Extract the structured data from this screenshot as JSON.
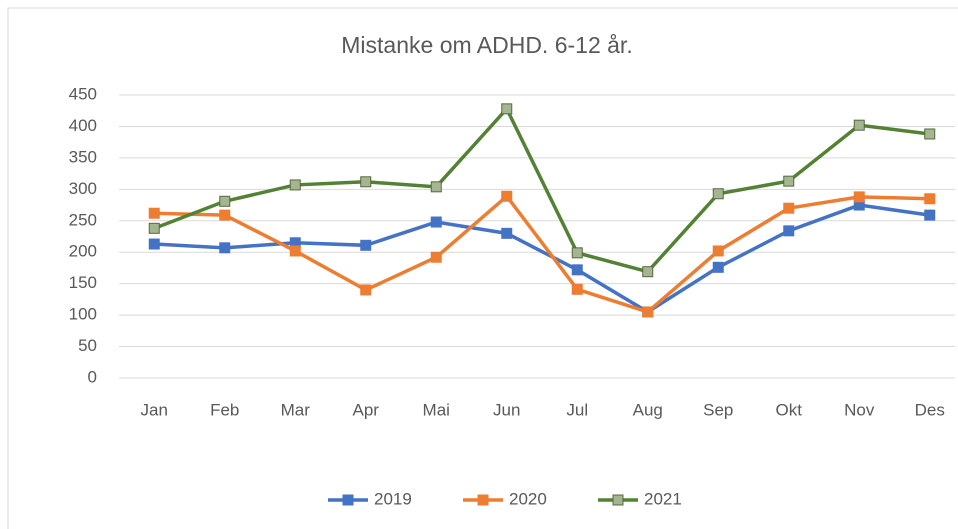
{
  "chart_data": {
    "type": "line",
    "title": "Mistanke om ADHD. 6-12 år.",
    "categories": [
      "Jan",
      "Feb",
      "Mar",
      "Apr",
      "Mai",
      "Jun",
      "Jul",
      "Aug",
      "Sep",
      "Okt",
      "Nov",
      "Des"
    ],
    "series": [
      {
        "name": "2019",
        "color": "#4472c4",
        "values": [
          213,
          207,
          215,
          211,
          248,
          230,
          172,
          105,
          176,
          234,
          275,
          259
        ]
      },
      {
        "name": "2020",
        "color": "#ed7d31",
        "values": [
          262,
          259,
          202,
          140,
          192,
          289,
          141,
          105,
          202,
          270,
          288,
          285
        ]
      },
      {
        "name": "2021",
        "color": "#548235",
        "values": [
          238,
          281,
          307,
          312,
          304,
          428,
          199,
          169,
          293,
          313,
          402,
          388
        ]
      }
    ],
    "ylim": [
      0,
      450
    ],
    "yticks": [
      0,
      50,
      100,
      150,
      200,
      250,
      300,
      350,
      400,
      450
    ],
    "grid": true,
    "legend": "bottom"
  }
}
